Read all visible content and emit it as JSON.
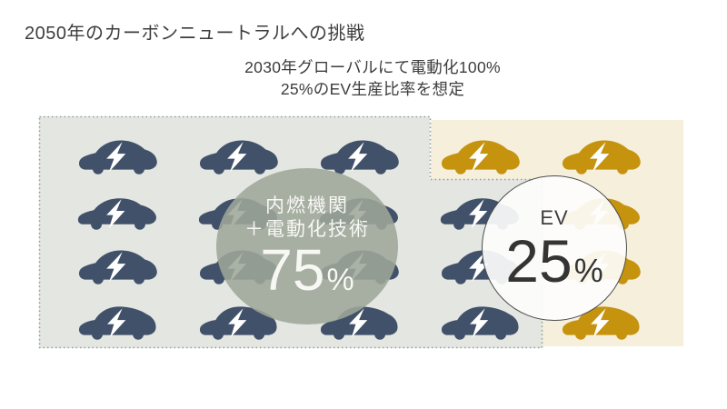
{
  "title": "2050年のカーボンニュートラルへの挑戦",
  "subtitle": {
    "line1": "2030年グローバルにて電動化100%",
    "line2": "25%のEV生産比率を想定"
  },
  "chart_data": {
    "type": "pie",
    "variant": "pictograph-car-grid",
    "title": "2050年のカーボンニュートラルへの挑戦",
    "annotation": "2030年グローバルにて電動化100% / 25%のEV生産比率を想定",
    "categories": [
      "内燃機関＋電動化技術",
      "EV"
    ],
    "values": [
      75,
      25
    ],
    "unit": "%",
    "icon": "car-with-lightning-bolt",
    "icon_counts": {
      "ice_hybrid_cars": 15,
      "ev_cars": 5,
      "total": 20
    },
    "grid": {
      "rows": 4,
      "cols": 5,
      "ev_cells": [
        [
          0,
          3
        ],
        [
          0,
          4
        ],
        [
          1,
          4
        ],
        [
          2,
          4
        ],
        [
          3,
          4
        ]
      ],
      "row_shapes": [
        0,
        1,
        0,
        2
      ]
    },
    "labels": {
      "ice": {
        "line1": "内燃機関",
        "line2": "＋電動化技術",
        "value": "75",
        "unit": "%"
      },
      "ev": {
        "name": "EV",
        "value": "25",
        "unit": "%"
      }
    },
    "colors": {
      "ice_car": "#41516a",
      "ev_car": "#c5930e",
      "ice_region_bg": "#e4e6e2",
      "ev_region_bg": "#f6efdc",
      "ice_circle_bg": "rgba(158,166,152,0.88)",
      "ev_circle_bg": "rgba(253,253,252,0.92)",
      "dotted_border": "#98a09b",
      "bolt": "#ffffff"
    },
    "legend_position": "overlay-circles",
    "grid_lines": false
  }
}
